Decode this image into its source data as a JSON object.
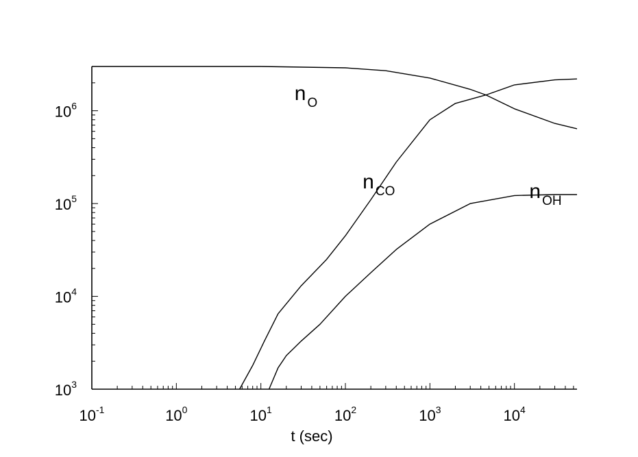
{
  "chart_data": {
    "type": "line",
    "title": "",
    "xlabel": "t (sec)",
    "ylabel": "",
    "xscale": "log",
    "yscale": "log",
    "xlim": [
      0.1,
      55000
    ],
    "ylim": [
      1000,
      3000000
    ],
    "grid": false,
    "legend": "none",
    "x_ticks": [
      {
        "value": 0.1,
        "base": "10",
        "exp": "-1"
      },
      {
        "value": 1,
        "base": "10",
        "exp": "0"
      },
      {
        "value": 10,
        "base": "10",
        "exp": "1"
      },
      {
        "value": 100,
        "base": "10",
        "exp": "2"
      },
      {
        "value": 1000,
        "base": "10",
        "exp": "3"
      },
      {
        "value": 10000,
        "base": "10",
        "exp": "4"
      }
    ],
    "y_ticks": [
      {
        "value": 1000,
        "base": "10",
        "exp": "3"
      },
      {
        "value": 10000,
        "base": "10",
        "exp": "4"
      },
      {
        "value": 100000,
        "base": "10",
        "exp": "5"
      },
      {
        "value": 1000000,
        "base": "10",
        "exp": "6"
      }
    ],
    "series": [
      {
        "id": "n_O",
        "label_main": "n",
        "label_sub": "O",
        "label_at": [
          25,
          1300000
        ],
        "x": [
          0.1,
          1,
          10,
          100,
          300,
          1000,
          3000,
          4600,
          10000,
          30000,
          55000
        ],
        "y": [
          3000000,
          3000000,
          3000000,
          2900000,
          2700000,
          2250000,
          1700000,
          1480000,
          1050000,
          730000,
          640000
        ]
      },
      {
        "id": "n_CO",
        "label_main": "n",
        "label_sub": "CO",
        "label_at": [
          160,
          145000
        ],
        "x": [
          5.6,
          8,
          11,
          16,
          30,
          60,
          100,
          200,
          400,
          1000,
          2000,
          4600,
          10000,
          30000,
          55000
        ],
        "y": [
          1000,
          1800,
          3300,
          6500,
          13000,
          25000,
          45000,
          110000,
          280000,
          800000,
          1200000,
          1480000,
          1900000,
          2150000,
          2200000
        ]
      },
      {
        "id": "n_OH",
        "label_main": "n",
        "label_sub": "OH",
        "label_at": [
          15000,
          115000
        ],
        "x": [
          12.5,
          16,
          20,
          30,
          50,
          100,
          200,
          400,
          1000,
          3000,
          10000,
          30000,
          55000
        ],
        "y": [
          1000,
          1700,
          2300,
          3300,
          5000,
          10000,
          18000,
          32000,
          60000,
          100000,
          122000,
          125000,
          125000
        ]
      }
    ]
  }
}
